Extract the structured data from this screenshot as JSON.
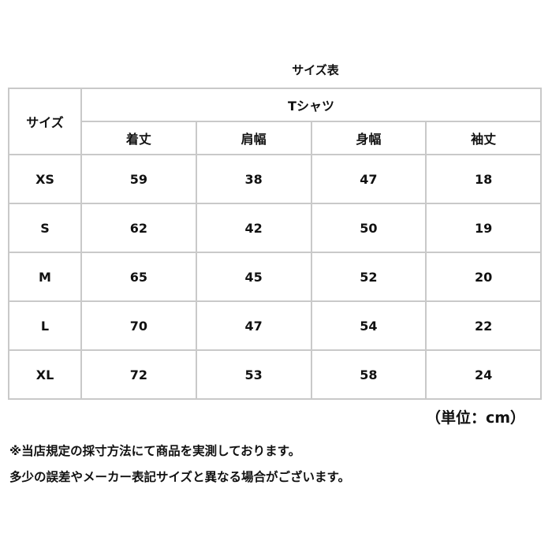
{
  "title": "サイズ表",
  "table": {
    "corner_header": "サイズ",
    "group_header": "Tシャツ",
    "columns": [
      "着丈",
      "肩幅",
      "身幅",
      "袖丈"
    ],
    "rows": [
      {
        "size": "XS",
        "values": [
          "59",
          "38",
          "47",
          "18"
        ]
      },
      {
        "size": "S",
        "values": [
          "62",
          "42",
          "50",
          "19"
        ]
      },
      {
        "size": "M",
        "values": [
          "65",
          "45",
          "52",
          "20"
        ]
      },
      {
        "size": "L",
        "values": [
          "70",
          "47",
          "54",
          "22"
        ]
      },
      {
        "size": "XL",
        "values": [
          "72",
          "53",
          "58",
          "24"
        ]
      }
    ]
  },
  "unit": "（単位：cm）",
  "notes": [
    "※当店規定の採寸方法にて商品を実測しております。",
    "多少の誤差やメーカー表記サイズと異なる場合がございます。"
  ]
}
